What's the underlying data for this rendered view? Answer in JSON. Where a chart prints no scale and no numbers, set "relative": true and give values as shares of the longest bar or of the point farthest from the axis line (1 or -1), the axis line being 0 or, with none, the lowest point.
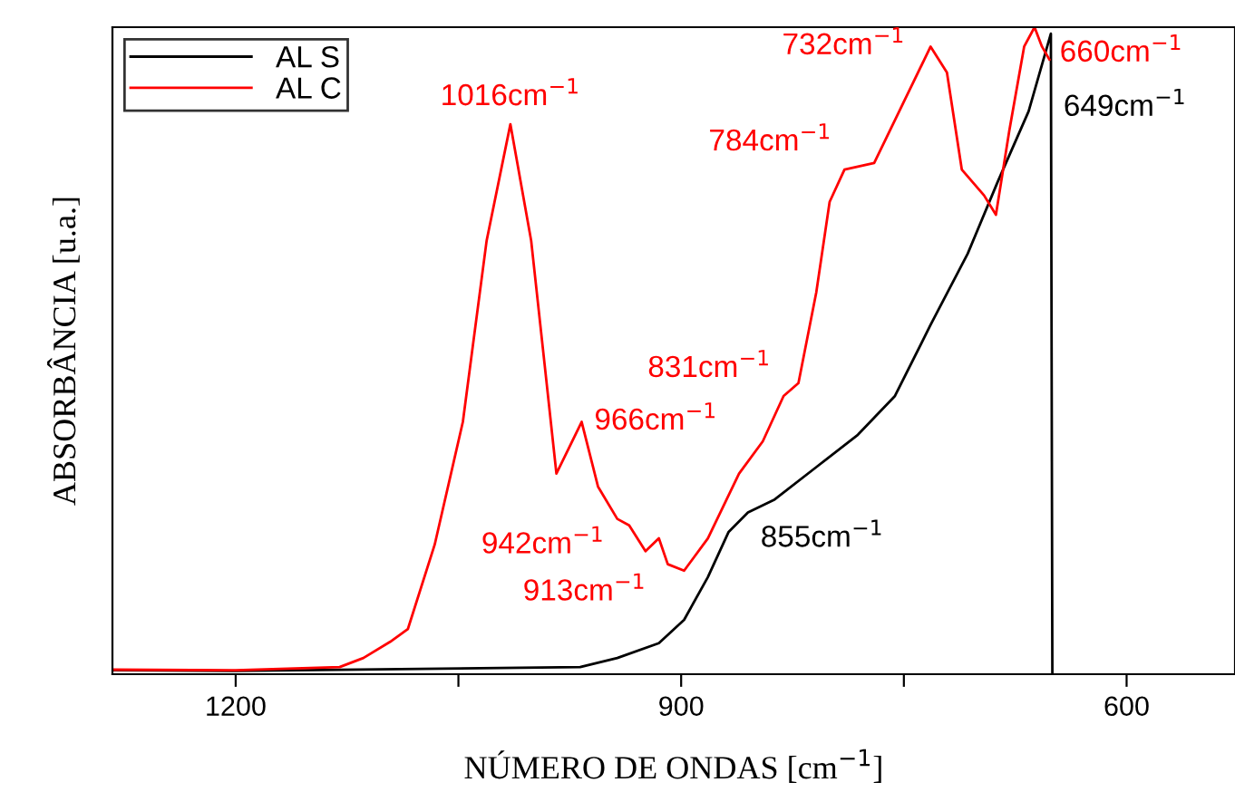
{
  "chart_data": {
    "type": "line",
    "relative": true,
    "xlabel": "NÚMERO DE ONDAS [cm$^{−1}$]",
    "ylabel": "ABSORBÂNCIA [u.a.]",
    "xlim": [
      1283,
      527
    ],
    "xticks": [
      1200,
      {
        "value": 1050,
        "label": null
      },
      900,
      {
        "value": 750,
        "label": null
      },
      600
    ],
    "legend": "top left",
    "grid": false,
    "series": [
      {
        "name": "AL S",
        "color": "#000000",
        "x": [
          1283,
          1200,
          968,
          943,
          915,
          898,
          882,
          868,
          855,
          837,
          809,
          781,
          756,
          732,
          707,
          687,
          666,
          651,
          650
        ],
        "values": [
          0.006,
          0.005,
          0.011,
          0.025,
          0.048,
          0.084,
          0.15,
          0.22,
          0.25,
          0.27,
          0.32,
          0.37,
          0.43,
          0.54,
          0.65,
          0.76,
          0.87,
          0.99,
          0
        ]
      },
      {
        "name": "AL C",
        "color": "#ff0000",
        "x": [
          1283,
          1200,
          1130,
          1114,
          1096,
          1084,
          1066,
          1047,
          1031,
          1015,
          1001,
          992,
          984,
          967,
          956,
          943,
          935,
          924,
          915,
          909,
          898,
          882,
          861,
          845,
          831,
          821,
          809,
          800,
          790,
          770,
          751,
          732,
          721,
          711,
          696,
          688,
          679,
          669,
          662,
          657,
          652
        ],
        "values": [
          0.007,
          0.006,
          0.011,
          0.025,
          0.05,
          0.07,
          0.2,
          0.39,
          0.67,
          0.85,
          0.67,
          0.48,
          0.31,
          0.39,
          0.29,
          0.24,
          0.23,
          0.19,
          0.21,
          0.17,
          0.16,
          0.21,
          0.31,
          0.36,
          0.43,
          0.45,
          0.59,
          0.73,
          0.78,
          0.79,
          0.88,
          0.97,
          0.93,
          0.78,
          0.74,
          0.71,
          0.84,
          0.97,
          1.0,
          0.97,
          0.95
        ]
      }
    ],
    "annotations": [
      {
        "text": "1016cm$^{−1}$",
        "x": 1015,
        "y": 0.85
      },
      {
        "text": "966cm$^{−1}$",
        "x": 967,
        "y": 0.39
      },
      {
        "text": "942cm$^{−1}$",
        "x": 943,
        "y": 0.24
      },
      {
        "text": "913cm$^{−1}$",
        "x": 915,
        "y": 0.21
      },
      {
        "text": "831cm$^{−1}$",
        "x": 831,
        "y": 0.43
      },
      {
        "text": "784cm$^{−1}$",
        "x": 790,
        "y": 0.78
      },
      {
        "text": "732cm$^{−1}$",
        "x": 732,
        "y": 0.97
      },
      {
        "text": "660cm$^{−1}$",
        "x": 662,
        "y": 1.0
      },
      {
        "text": "649cm$^{−1}$",
        "x": 651,
        "y": 0.99
      },
      {
        "text": "855cm$^{−1}$",
        "x": 855,
        "y": 0.25
      }
    ]
  }
}
